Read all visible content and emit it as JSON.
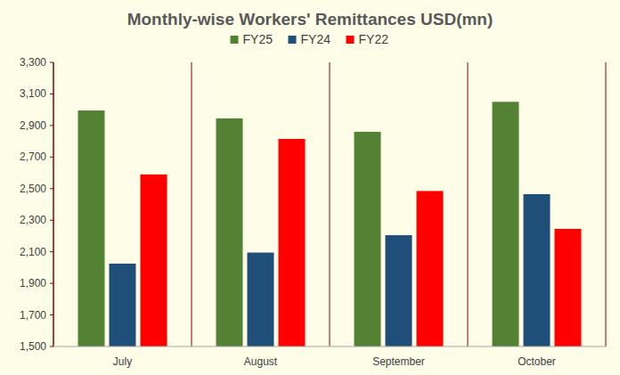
{
  "chart_data": {
    "type": "bar",
    "title": "Monthly-wise Workers' Remittances USD(mn)",
    "categories": [
      "July",
      "August",
      "September",
      "October"
    ],
    "series": [
      {
        "name": "FY25",
        "color": "#548235",
        "values": [
          2995,
          2945,
          2860,
          3050
        ]
      },
      {
        "name": "FY24",
        "color": "#1f4e79",
        "values": [
          2025,
          2095,
          2205,
          2465
        ]
      },
      {
        "name": "FY22",
        "color": "#ff0000",
        "values": [
          2590,
          2815,
          2485,
          2245
        ]
      }
    ],
    "ylim": [
      1500,
      3300
    ],
    "yticks": [
      {
        "value": 1500,
        "label": "1,500"
      },
      {
        "value": 1700,
        "label": "1,700"
      },
      {
        "value": 1900,
        "label": "1,900"
      },
      {
        "value": 2100,
        "label": "2,100"
      },
      {
        "value": 2300,
        "label": "2,300"
      },
      {
        "value": 2500,
        "label": "2,500"
      },
      {
        "value": 2700,
        "label": "2,700"
      },
      {
        "value": 2900,
        "label": "2,900"
      },
      {
        "value": 3100,
        "label": "3,100"
      },
      {
        "value": 3300,
        "label": "3,300"
      }
    ],
    "grid": true,
    "legend": "top"
  }
}
